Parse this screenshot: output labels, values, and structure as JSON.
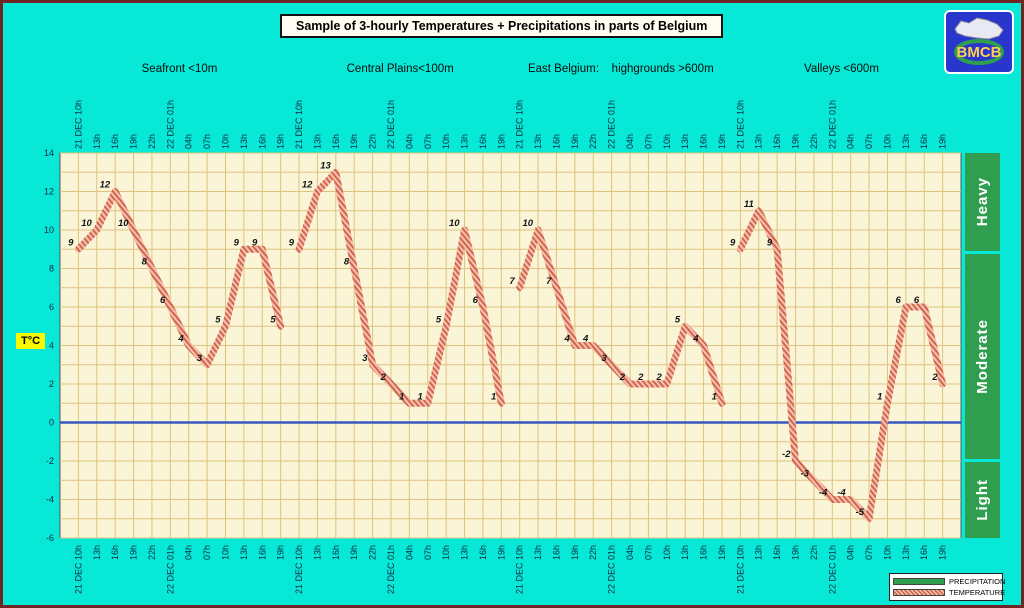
{
  "title": "Sample of 3-hourly Temperatures + Precipitations in parts of Belgium",
  "logo": {
    "text": "BMCB"
  },
  "y_axis": {
    "label": "T°C"
  },
  "right_bands": [
    "Heavy",
    "Moderate",
    "Light"
  ],
  "legend": {
    "precipitation": "PRECIPITATION",
    "temperature": "TEMPERATURE"
  },
  "colors": {
    "background": "#07e9d6",
    "plot_bg": "#faf5d7",
    "grid": "#dfc27e",
    "zero_line": "#3a56c0",
    "temp_base": "#f5c0ac",
    "temp_stripe": "#cf5f48",
    "band_green": "#2f9e4f",
    "logo_blue": "#2836cc",
    "ylabel_bg": "#f8f800"
  },
  "chart_data": {
    "type": "line",
    "title": "Sample of 3-hourly Temperatures + Precipitations in parts of Belgium",
    "ylabel": "T°C",
    "ylim": [
      -6,
      14
    ],
    "ytick_step": 2,
    "grid": true,
    "legend_entries": [
      "PRECIPITATION",
      "TEMPERATURE"
    ],
    "time_labels": [
      "21 DEC 10h",
      "13h",
      "16h",
      "19h",
      "22h",
      "22 DEC 01h",
      "04h",
      "07h",
      "10h",
      "13h",
      "16h",
      "19h"
    ],
    "groups": [
      {
        "name": "Seafront <10m",
        "values": [
          9,
          10,
          12,
          10,
          8,
          6,
          4,
          3,
          5,
          9,
          9,
          5
        ]
      },
      {
        "name": "Central Plains<100m",
        "values": [
          9,
          12,
          13,
          8,
          3,
          2,
          1,
          1,
          5,
          10,
          6,
          1
        ]
      },
      {
        "name": "East Belgium:    highgrounds >600m",
        "values": [
          7,
          10,
          7,
          4,
          4,
          3,
          2,
          2,
          2,
          5,
          4,
          1
        ]
      },
      {
        "name": "Valleys <600m",
        "values": [
          9,
          11,
          9,
          -2,
          -3,
          -4,
          -4,
          -5,
          1,
          6,
          6,
          2
        ]
      }
    ]
  }
}
